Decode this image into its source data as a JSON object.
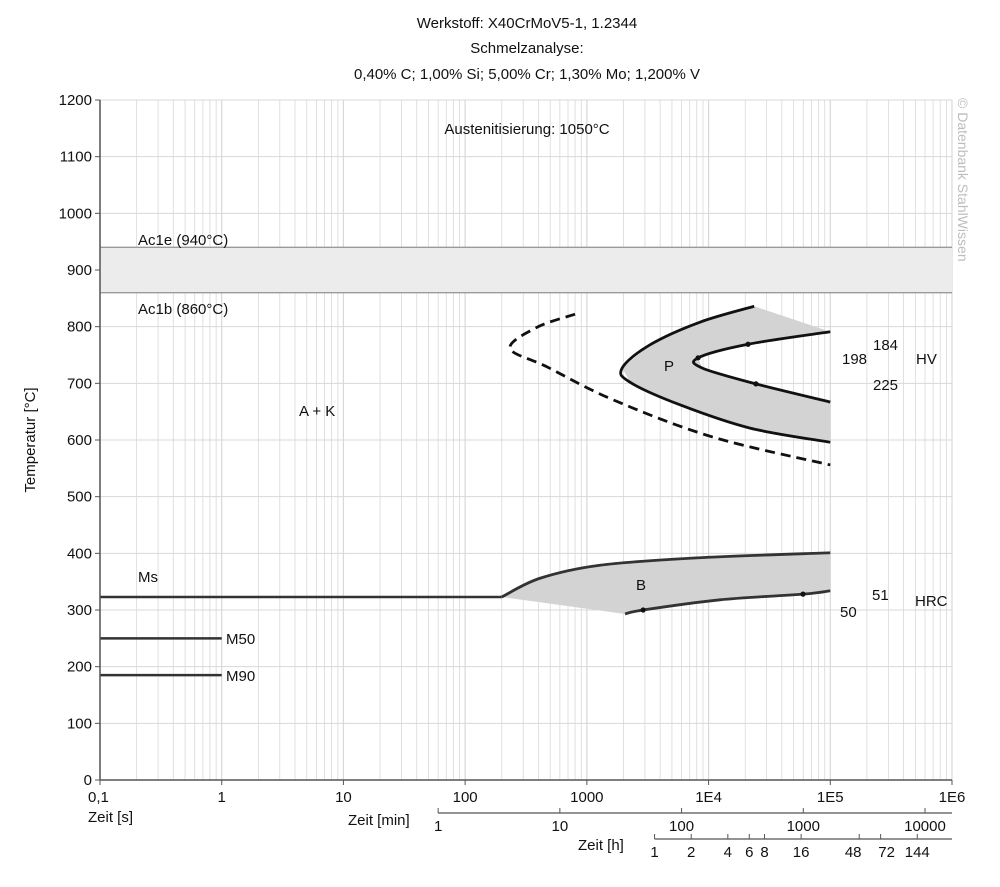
{
  "chart_data": {
    "type": "line",
    "title": [
      "Werkstoff: X40CrMoV5-1, 1.2344",
      "Schmelzanalyse:",
      "0,40% C; 1,00% Si; 5,00% Cr; 1,30% Mo; 1,200% V"
    ],
    "subtitle": "Austenitisierung: 1050°C",
    "ylabel": "Temperatur [°C]",
    "ylim": [
      0,
      1200
    ],
    "yticks": [
      0,
      100,
      200,
      300,
      400,
      500,
      600,
      700,
      800,
      900,
      1000,
      1100,
      1200
    ],
    "xscale": "log",
    "xlim": [
      0.1,
      1000000
    ],
    "grid": true,
    "x_axes": {
      "seconds": {
        "label": "Zeit [s]",
        "ticks": [
          0.1,
          1,
          10,
          100,
          1000,
          10000,
          100000,
          1000000
        ],
        "tick_labels": [
          "0,1",
          "1",
          "10",
          "100",
          "1000",
          "1E4",
          "1E5",
          "1E6"
        ]
      },
      "minutes": {
        "label": "Zeit [min]",
        "ticks": [
          1,
          10,
          100,
          1000,
          10000
        ],
        "tick_labels": [
          "1",
          "10",
          "100",
          "1000",
          "10000"
        ]
      },
      "hours": {
        "label": "Zeit [h]",
        "ticks": [
          1,
          2,
          4,
          6,
          8,
          16,
          48,
          72,
          144
        ],
        "tick_labels": [
          "1",
          "2",
          "4",
          "6",
          "8",
          "16",
          "48",
          "72",
          "144"
        ]
      }
    },
    "bands": [
      {
        "name": "Ac1 band",
        "from": 860,
        "to": 940
      }
    ],
    "hlines": [
      {
        "name": "Ac1e",
        "label": "Ac1e (940°C)",
        "y": 940,
        "x_from": 0.1,
        "x_to": 1000000
      },
      {
        "name": "Ac1b",
        "label": "Ac1b (860°C)",
        "y": 860,
        "x_from": 0.1,
        "x_to": 1000000
      },
      {
        "name": "Ms",
        "label": "Ms",
        "y": 323,
        "x_from": 0.1,
        "x_to": 200
      },
      {
        "name": "M50",
        "label": "M50",
        "y": 250,
        "x_from": 0.1,
        "x_to": 1
      },
      {
        "name": "M90",
        "label": "M90",
        "y": 185,
        "x_from": 0.1,
        "x_to": 1
      }
    ],
    "series": [
      {
        "name": "carbide-precipitation-start",
        "style": "dashed",
        "points": [
          [
            800,
            822
          ],
          [
            390,
            799
          ],
          [
            234,
            762
          ],
          [
            471,
            729
          ],
          [
            1640,
            671
          ],
          [
            10900,
            605
          ],
          [
            100000,
            556
          ]
        ]
      },
      {
        "name": "pearlite-start",
        "style": "solid",
        "points": [
          [
            23700,
            836
          ],
          [
            8500,
            808
          ],
          [
            3300,
            768
          ],
          [
            1950,
            727
          ],
          [
            2260,
            702
          ],
          [
            5830,
            662
          ],
          [
            21900,
            621
          ],
          [
            100000,
            596
          ]
        ]
      },
      {
        "name": "pearlite-end",
        "style": "solid",
        "points": [
          [
            100000,
            791
          ],
          [
            21100,
            769
          ],
          [
            8200,
            745
          ],
          [
            8850,
            727
          ],
          [
            24500,
            699
          ],
          [
            100000,
            667
          ]
        ]
      },
      {
        "name": "bainite-start",
        "style": "solid",
        "points": [
          [
            200,
            323
          ],
          [
            412,
            356
          ],
          [
            1280,
            379
          ],
          [
            8000,
            392
          ],
          [
            100000,
            401
          ]
        ]
      },
      {
        "name": "bainite-end",
        "style": "solid",
        "points": [
          [
            2060,
            293
          ],
          [
            2900,
            300
          ],
          [
            12400,
            318
          ],
          [
            59700,
            328
          ],
          [
            100000,
            334
          ]
        ]
      }
    ],
    "markers": [
      [
        21100,
        769
      ],
      [
        8200,
        745
      ],
      [
        24500,
        699
      ],
      [
        2900,
        300
      ],
      [
        59700,
        328
      ]
    ],
    "regions": [
      {
        "label": "A + K"
      },
      {
        "label": "P"
      },
      {
        "label": "B"
      }
    ],
    "hardness": {
      "hv": {
        "unit": "HV",
        "values": [
          "184",
          "198",
          "225"
        ]
      },
      "hrc": {
        "unit": "HRC",
        "values": [
          "51",
          "50"
        ]
      }
    },
    "colors": {
      "fill": "#d3d3d3",
      "band": "#ececec",
      "grid": "#d8d8d8",
      "line": "#111111",
      "bainite_line": "#333333"
    }
  },
  "watermark": "© Datenbank StahlWissen"
}
